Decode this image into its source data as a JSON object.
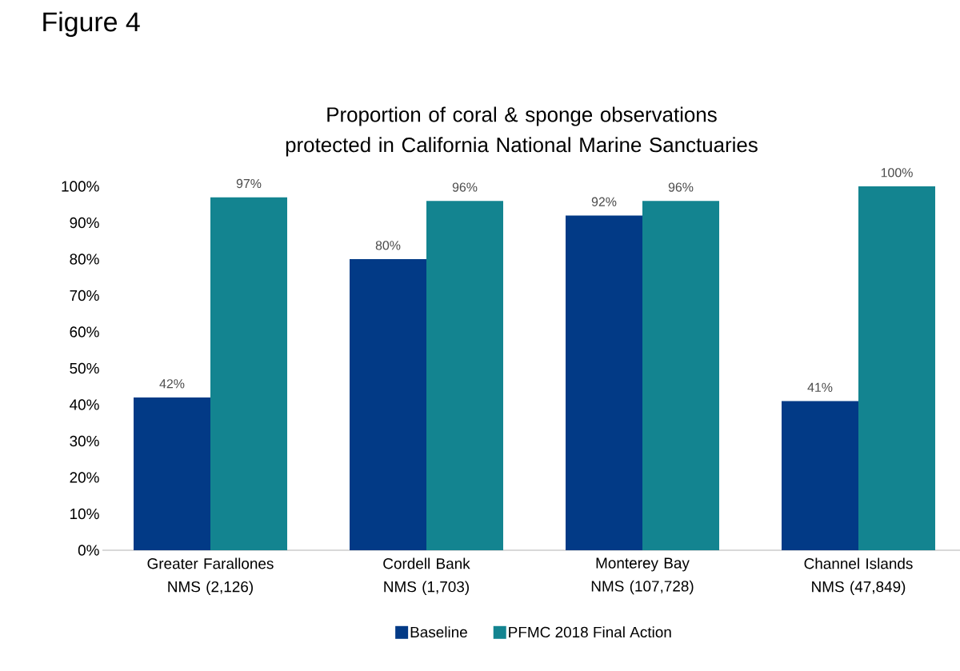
{
  "chart_data": {
    "type": "bar",
    "title": "Proportion of coral & sponge observations protected in California National Marine Sanctuaries",
    "annotations": [
      "Figure 4"
    ],
    "categories": [
      "Greater Farallones NMS (2,126)",
      "Cordell Bank NMS (1,703)",
      "Monterey Bay NMS (107,728)",
      "Channel Islands NMS (47,849)"
    ],
    "series": [
      {
        "name": "Baseline",
        "color": "#023a86",
        "values": [
          42,
          80,
          92,
          41
        ],
        "value_labels": [
          "42%",
          "80%",
          "92%",
          "41%"
        ]
      },
      {
        "name": "PFMC 2018 Final Action",
        "color": "#138490",
        "values": [
          97,
          96,
          96,
          100
        ],
        "value_labels": [
          "97%",
          "96%",
          "96%",
          "100%"
        ]
      }
    ],
    "ylim": [
      0,
      100
    ],
    "yticks": [
      {
        "value": 0,
        "label": "0%"
      },
      {
        "value": 10,
        "label": "10%"
      },
      {
        "value": 20,
        "label": "20%"
      },
      {
        "value": 30,
        "label": "30%"
      },
      {
        "value": 40,
        "label": "40%"
      },
      {
        "value": 50,
        "label": "50%"
      },
      {
        "value": 60,
        "label": "60%"
      },
      {
        "value": 70,
        "label": "70%"
      },
      {
        "value": 80,
        "label": "80%"
      },
      {
        "value": 90,
        "label": "90%"
      },
      {
        "value": 100,
        "label": "100%"
      }
    ],
    "grid": false,
    "legend": "bottom"
  }
}
